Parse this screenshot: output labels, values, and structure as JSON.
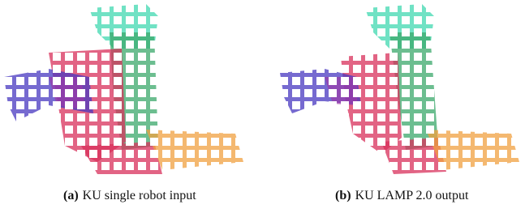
{
  "figure": {
    "panels": [
      {
        "label": "(a)",
        "caption": "KU single robot input"
      },
      {
        "label": "(b)",
        "caption": "KU LAMP 2.0 output"
      }
    ]
  }
}
